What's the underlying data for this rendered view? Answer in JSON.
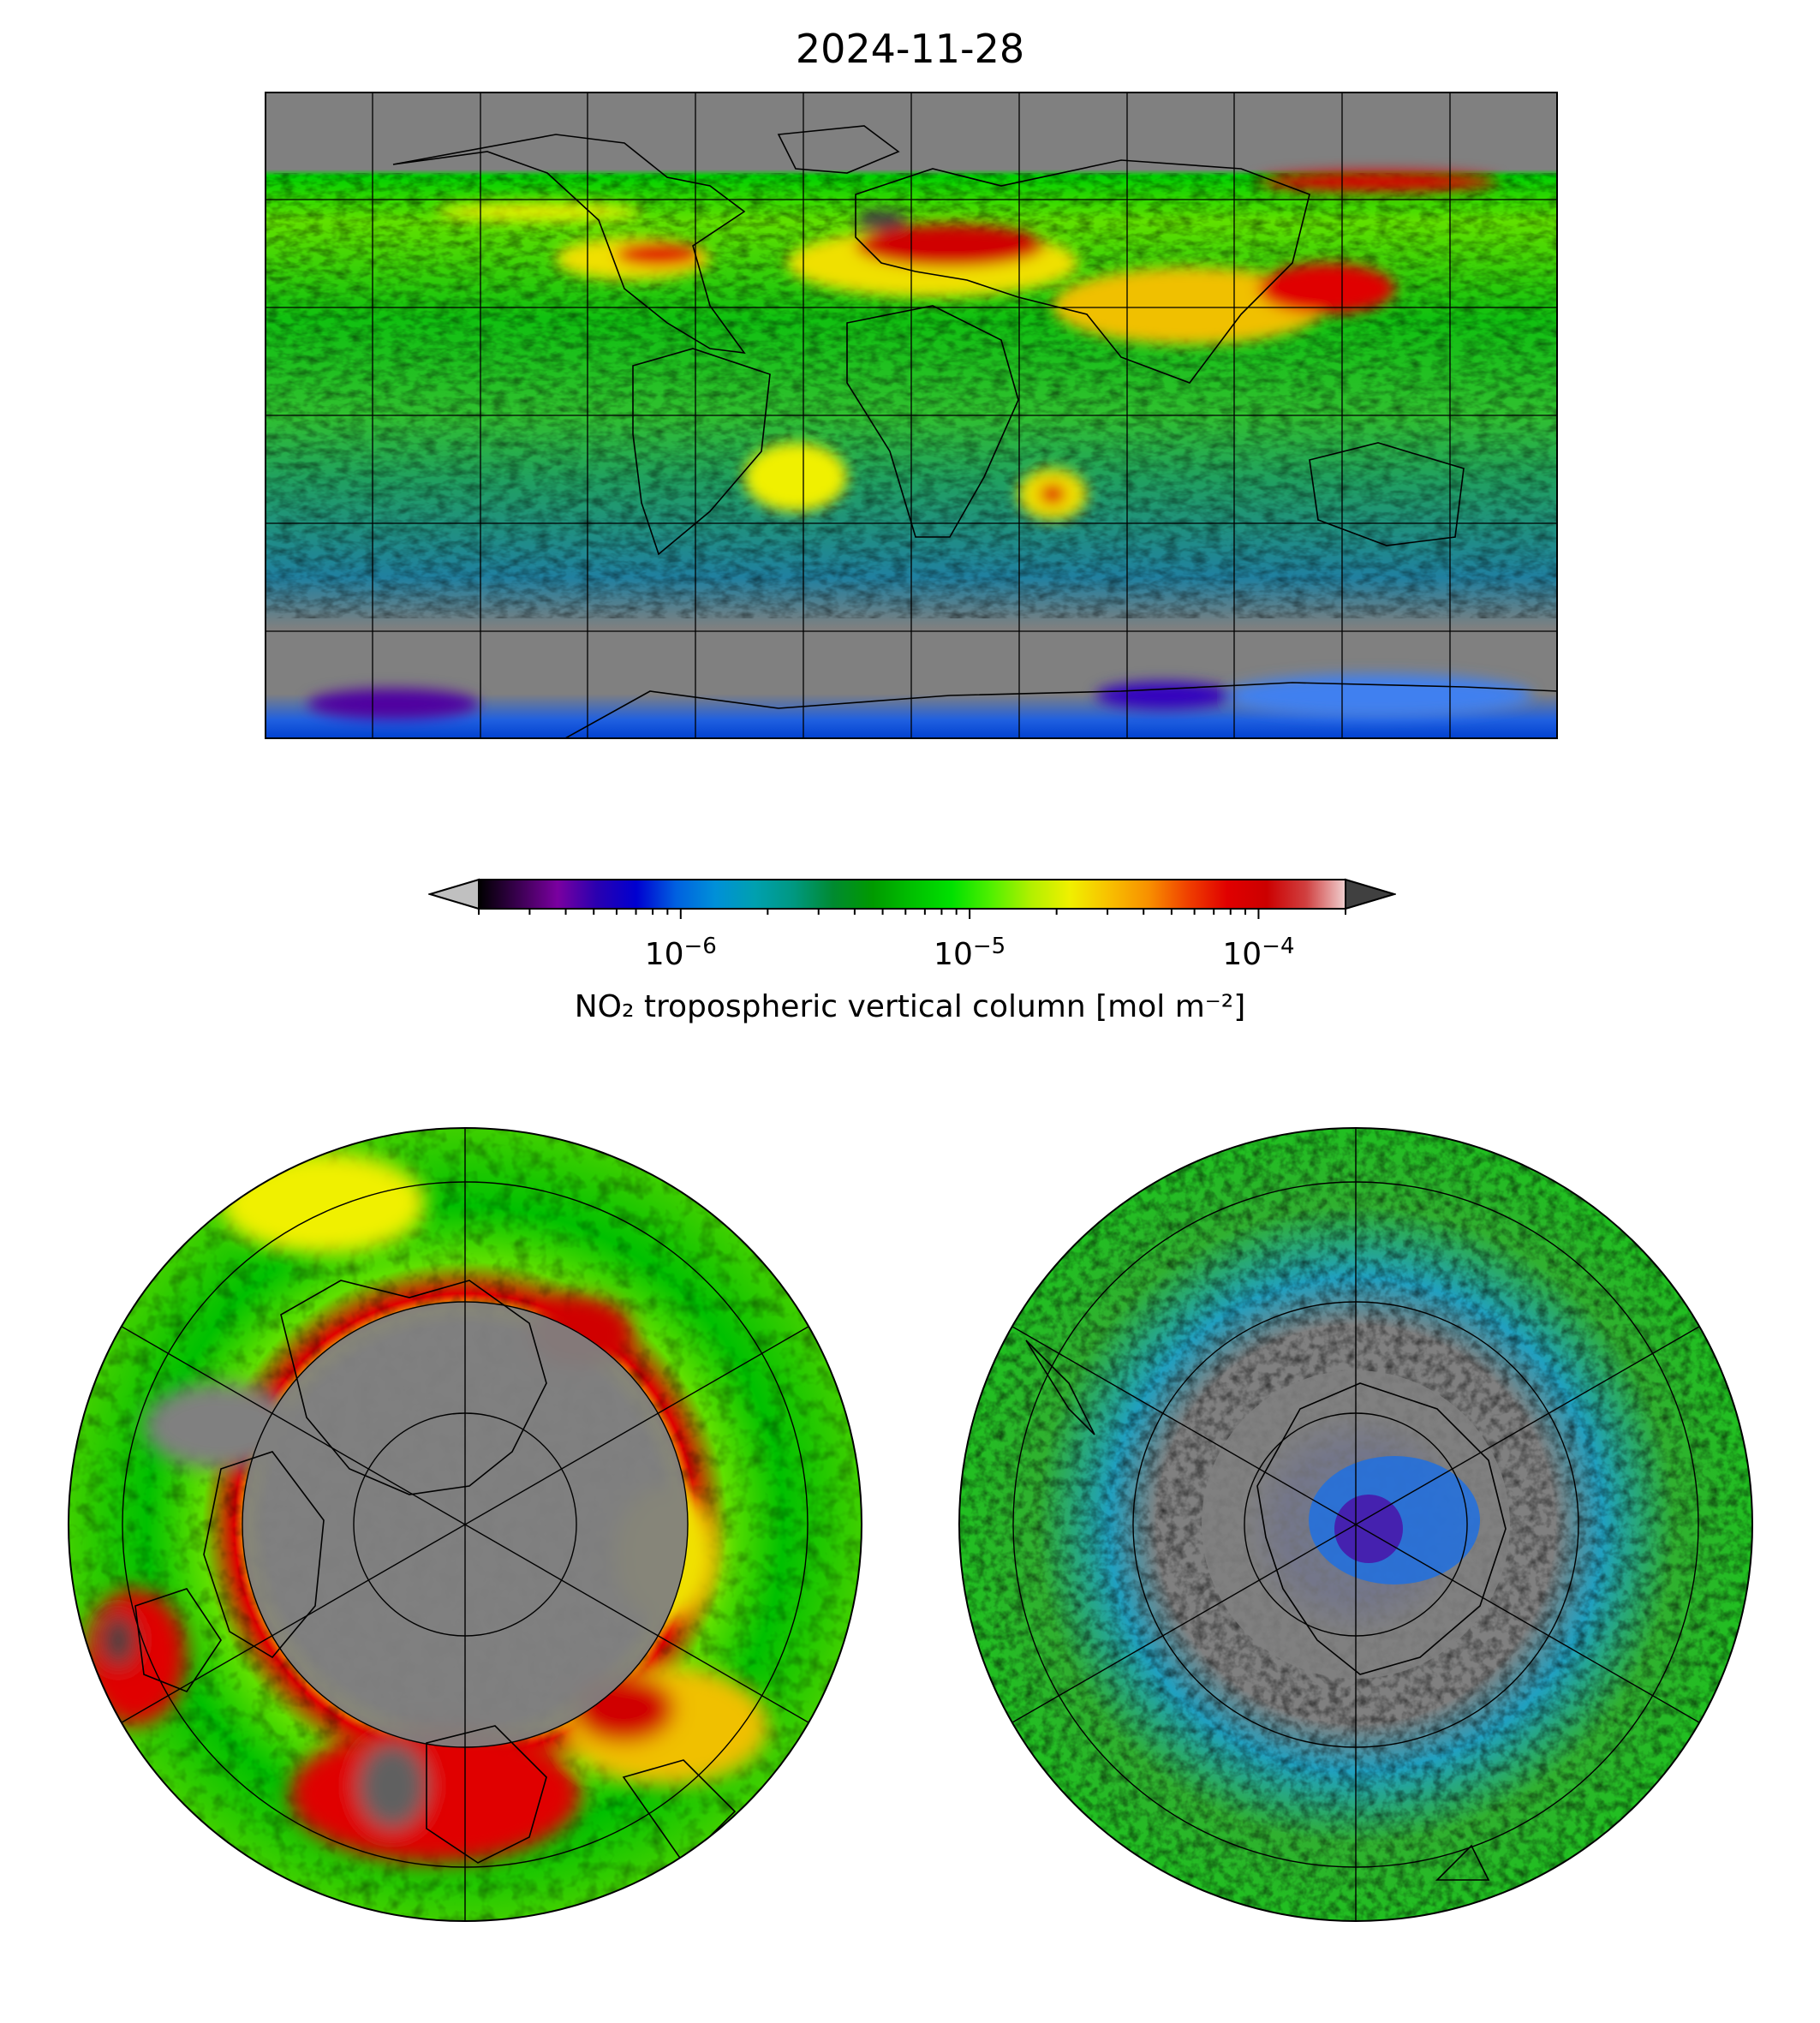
{
  "title": "2024-11-28",
  "colorbar": {
    "label": "NO₂ tropospheric vertical column [mol m⁻²]",
    "ticks": [
      {
        "base": "10",
        "exp": "−6",
        "value": 1e-06
      },
      {
        "base": "10",
        "exp": "−5",
        "value": 1e-05
      },
      {
        "base": "10",
        "exp": "−4",
        "value": 0.0001
      }
    ],
    "range": [
      2e-07,
      0.0002
    ],
    "scale": "log",
    "extend": "both",
    "under_color": "#c0c0c0",
    "over_color": "#404040",
    "colors": [
      "#000000",
      "#3a0050",
      "#7a00a0",
      "#2a00b0",
      "#0000d0",
      "#0060e0",
      "#0090d8",
      "#00a0b0",
      "#009880",
      "#008a30",
      "#009a00",
      "#00c000",
      "#00e000",
      "#50f000",
      "#b0f000",
      "#f0f000",
      "#f8c000",
      "#f89000",
      "#f04000",
      "#e00000",
      "#cc0000",
      "#d04040",
      "#f0d0d0"
    ]
  },
  "maps": {
    "projection_top": "PlateCarree",
    "projection_bottom_left": "NorthPolarStereo",
    "projection_bottom_right": "SouthPolarStereo",
    "missing_color": "#808080"
  }
}
